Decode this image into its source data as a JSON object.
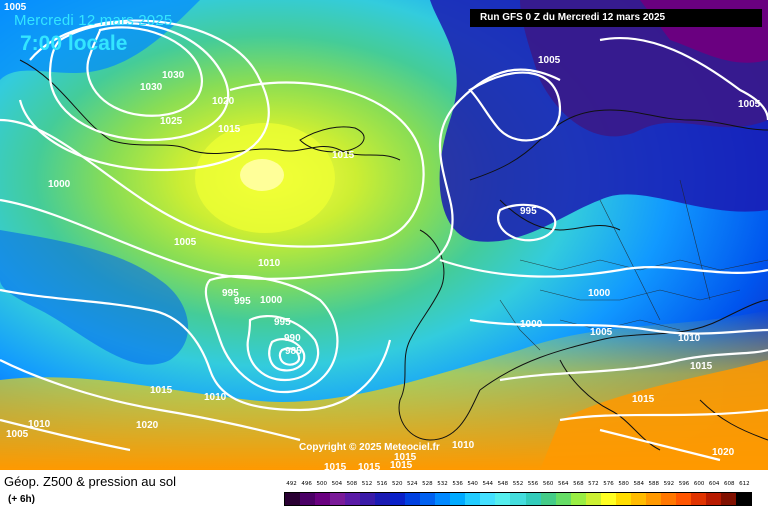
{
  "header": {
    "date": "Mercredi 12 mars 2025",
    "time": "7:00 locale",
    "run": "Run GFS 0 Z du Mercredi 12 mars 2025"
  },
  "copyright": "Copyright © 2025 Meteociel.fr",
  "footer": {
    "title": "Géop. Z500 & pression au sol",
    "subtitle": "(+ 6h)"
  },
  "scale": {
    "values": [
      "492",
      "496",
      "500",
      "504",
      "508",
      "512",
      "516",
      "520",
      "524",
      "528",
      "532",
      "536",
      "540",
      "544",
      "548",
      "552",
      "556",
      "560",
      "564",
      "568",
      "572",
      "576",
      "580",
      "584",
      "588",
      "592",
      "596",
      "600",
      "604",
      "608",
      "612"
    ],
    "colors": [
      "#2a0033",
      "#4b0066",
      "#6a0080",
      "#7a1a99",
      "#5a1aa6",
      "#3a1aa8",
      "#1a1ab3",
      "#0a20c8",
      "#0040e0",
      "#0060f0",
      "#0088ff",
      "#00aaff",
      "#22ccff",
      "#44e0ff",
      "#55eeee",
      "#44dddd",
      "#33ccbb",
      "#44cc88",
      "#66dd66",
      "#99ee44",
      "#ccf033",
      "#ffff22",
      "#ffdd00",
      "#ffbb00",
      "#ff9900",
      "#ff7700",
      "#ff5500",
      "#e03300",
      "#b81a00",
      "#801000",
      "#000000"
    ]
  },
  "isobar_labels": [
    {
      "id": "l1030a",
      "text": "1030"
    },
    {
      "id": "l1030b",
      "text": "1030"
    },
    {
      "id": "l1020",
      "text": "1020"
    },
    {
      "id": "l1025",
      "text": "1025"
    },
    {
      "id": "l1015a",
      "text": "1015"
    },
    {
      "id": "l1015b",
      "text": "1015"
    },
    {
      "id": "l1000a",
      "text": "1000"
    },
    {
      "id": "l1005a",
      "text": "1005"
    },
    {
      "id": "l1010a",
      "text": "1010"
    },
    {
      "id": "l995a",
      "text": "995"
    },
    {
      "id": "l995b",
      "text": "995"
    },
    {
      "id": "l1000b",
      "text": "1000"
    },
    {
      "id": "l995c",
      "text": "995"
    },
    {
      "id": "l990",
      "text": "990"
    },
    {
      "id": "l985",
      "text": "985"
    },
    {
      "id": "l1015c",
      "text": "1015"
    },
    {
      "id": "l1010b",
      "text": "1010"
    },
    {
      "id": "l1010c",
      "text": "1010"
    },
    {
      "id": "l1020b",
      "text": "1020"
    },
    {
      "id": "l1005b",
      "text": "1005"
    },
    {
      "id": "l1005c",
      "text": "1005"
    },
    {
      "id": "l1005d",
      "text": "1005"
    },
    {
      "id": "l995d",
      "text": "995"
    },
    {
      "id": "l1000c",
      "text": "1000"
    },
    {
      "id": "l1000d",
      "text": "1000"
    },
    {
      "id": "l1005e",
      "text": "1005"
    },
    {
      "id": "l1010d",
      "text": "1010"
    },
    {
      "id": "l1015d",
      "text": "1015"
    },
    {
      "id": "l1015e",
      "text": "1015"
    },
    {
      "id": "l1020c",
      "text": "1020"
    },
    {
      "id": "l1010e",
      "text": "1010"
    },
    {
      "id": "l1015f",
      "text": "1015"
    },
    {
      "id": "l1015g",
      "text": "1015"
    },
    {
      "id": "l1015h",
      "text": "1015"
    },
    {
      "id": "l1015i",
      "text": "1015"
    },
    {
      "id": "l1005f",
      "text": "1005"
    }
  ]
}
